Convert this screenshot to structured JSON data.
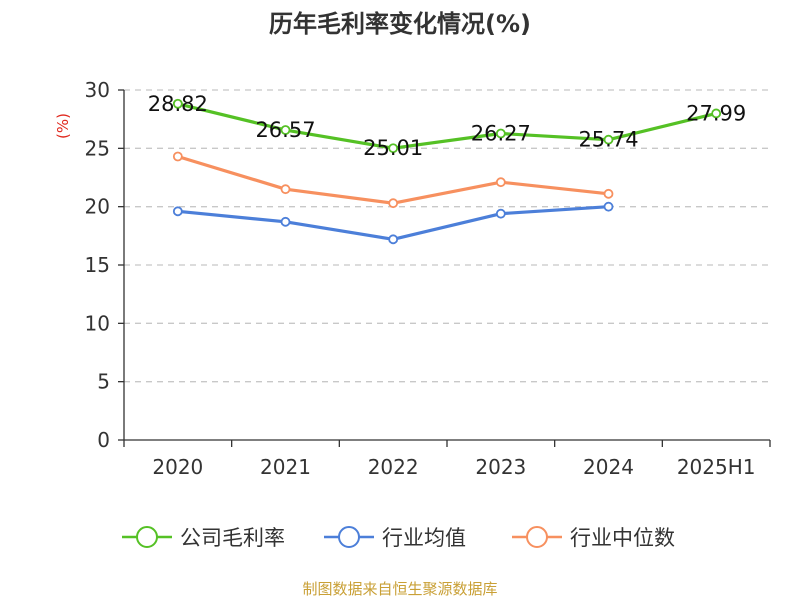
{
  "colors": {
    "company": "#55c125",
    "industry_avg": "#4c7fd9",
    "industry_median": "#f7905f",
    "ylabel": "#e0281e",
    "source": "#c9a036",
    "axis": "#333333",
    "grid": "#c8c8c8"
  },
  "source": "制图数据来自恒生聚源数据库",
  "chart_data": {
    "type": "line",
    "title": "历年毛利率变化情况(%)",
    "xlabel": "",
    "ylabel": "(%)",
    "categories": [
      "2020",
      "2021",
      "2022",
      "2023",
      "2024",
      "2025H1"
    ],
    "ylim": [
      0,
      30
    ],
    "yticks": [
      0,
      5,
      10,
      15,
      20,
      25,
      30
    ],
    "grid": true,
    "legend_position": "bottom",
    "series": [
      {
        "name": "公司毛利率",
        "color": "#55c125",
        "values": [
          28.82,
          26.57,
          25.01,
          26.27,
          25.74,
          27.99
        ],
        "labels": [
          "28.82",
          "26.57",
          "25.01",
          "26.27",
          "25.74",
          "27.99"
        ],
        "show_labels": true
      },
      {
        "name": "行业均值",
        "color": "#4c7fd9",
        "values": [
          19.6,
          18.7,
          17.2,
          19.4,
          20.0,
          null
        ],
        "show_labels": false
      },
      {
        "name": "行业中位数",
        "color": "#f7905f",
        "values": [
          24.3,
          21.5,
          20.3,
          22.1,
          21.1,
          null
        ],
        "show_labels": false
      }
    ]
  }
}
